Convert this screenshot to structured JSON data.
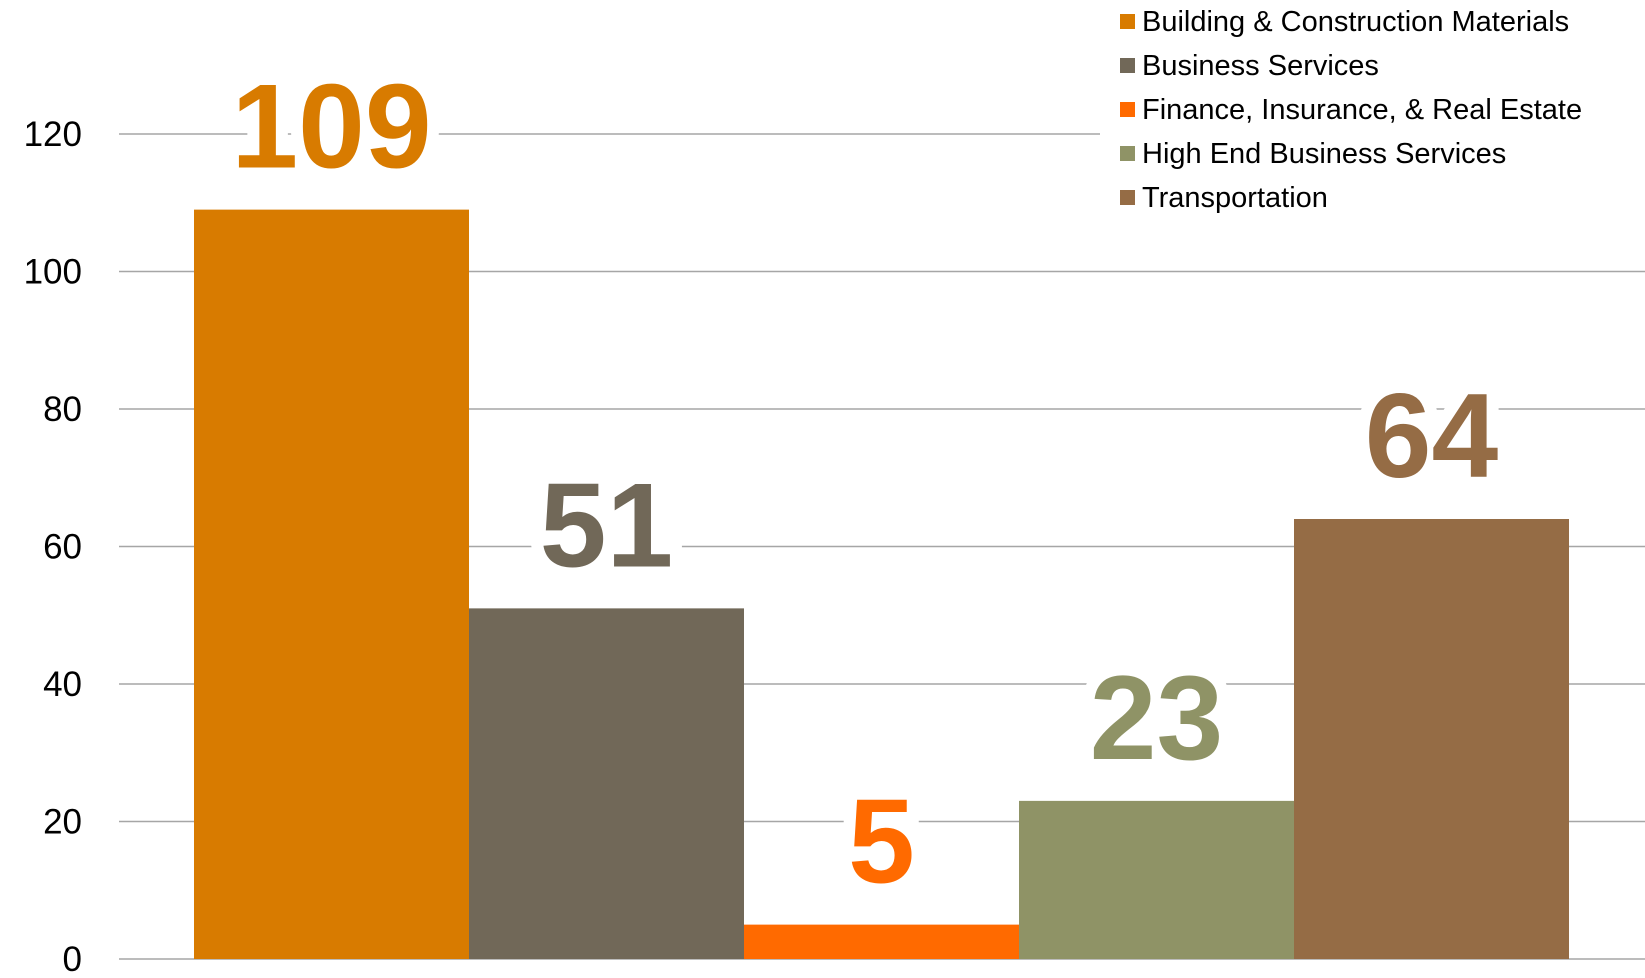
{
  "chart_data": {
    "type": "bar",
    "series": [
      {
        "name": "Building & Construction Materials",
        "color": "#d87b00",
        "values": [
          109
        ]
      },
      {
        "name": "Business Services",
        "color": "#716858",
        "values": [
          51
        ]
      },
      {
        "name": "Finance, Insurance, & Real Estate",
        "color": "#ff6a00",
        "values": [
          5
        ]
      },
      {
        "name": "High End Business Services",
        "color": "#8f9366",
        "values": [
          23
        ]
      },
      {
        "name": "Transportation",
        "color": "#956c45",
        "values": [
          64
        ]
      }
    ],
    "ylim": [
      0,
      120
    ],
    "yticks": [
      0,
      20,
      40,
      60,
      80,
      100,
      120
    ],
    "grid": true,
    "legend": "top-right"
  }
}
